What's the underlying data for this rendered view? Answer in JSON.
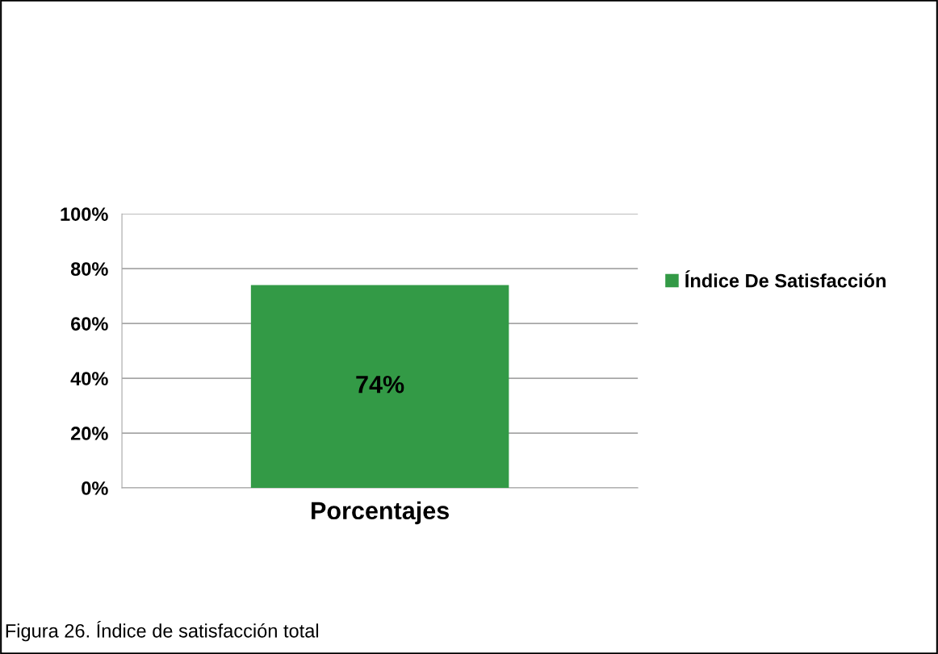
{
  "chart_data": {
    "type": "bar",
    "categories": [
      "Porcentajes"
    ],
    "series": [
      {
        "name": "Índice De Satisfacción",
        "color": "#339a46",
        "values": [
          74
        ],
        "value_labels": [
          "74%"
        ]
      }
    ],
    "ylim": [
      0,
      100
    ],
    "yticks": [
      {
        "value": 0,
        "label": "0%"
      },
      {
        "value": 20,
        "label": "20%"
      },
      {
        "value": 40,
        "label": "40%"
      },
      {
        "value": 60,
        "label": "60%"
      },
      {
        "value": 80,
        "label": "80%"
      },
      {
        "value": 100,
        "label": "100%"
      }
    ],
    "grid": "y",
    "legend": "right",
    "annotations": [
      "Figura 26. Índice de satisfacción total"
    ]
  }
}
